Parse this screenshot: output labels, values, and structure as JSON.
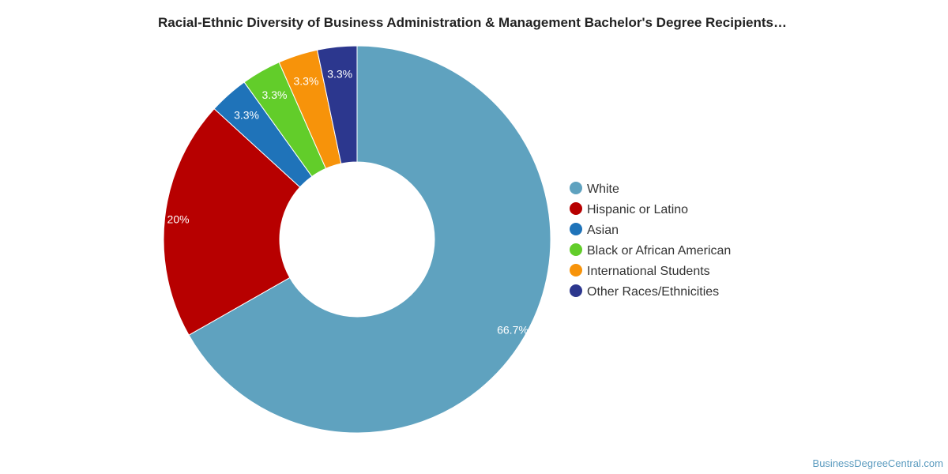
{
  "chart_data": {
    "type": "pie",
    "title": "Racial-Ethnic Diversity of Business Administration & Management Bachelor's Degree Recipients…",
    "categories": [
      "White",
      "Hispanic or Latino",
      "Asian",
      "Black or African American",
      "International Students",
      "Other Races/Ethnicities"
    ],
    "values": [
      66.7,
      20,
      3.3,
      3.3,
      3.3,
      3.3
    ],
    "labels": [
      "66.7%",
      "20%",
      "3.3%",
      "3.3%",
      "3.3%",
      "3.3%"
    ],
    "colors": [
      "#5fa2bf",
      "#b70000",
      "#1f73b9",
      "#62cd2a",
      "#f7930a",
      "#2c378e"
    ],
    "legend_position": "right",
    "donut": true
  },
  "footer": "BusinessDegreeCentral.com"
}
